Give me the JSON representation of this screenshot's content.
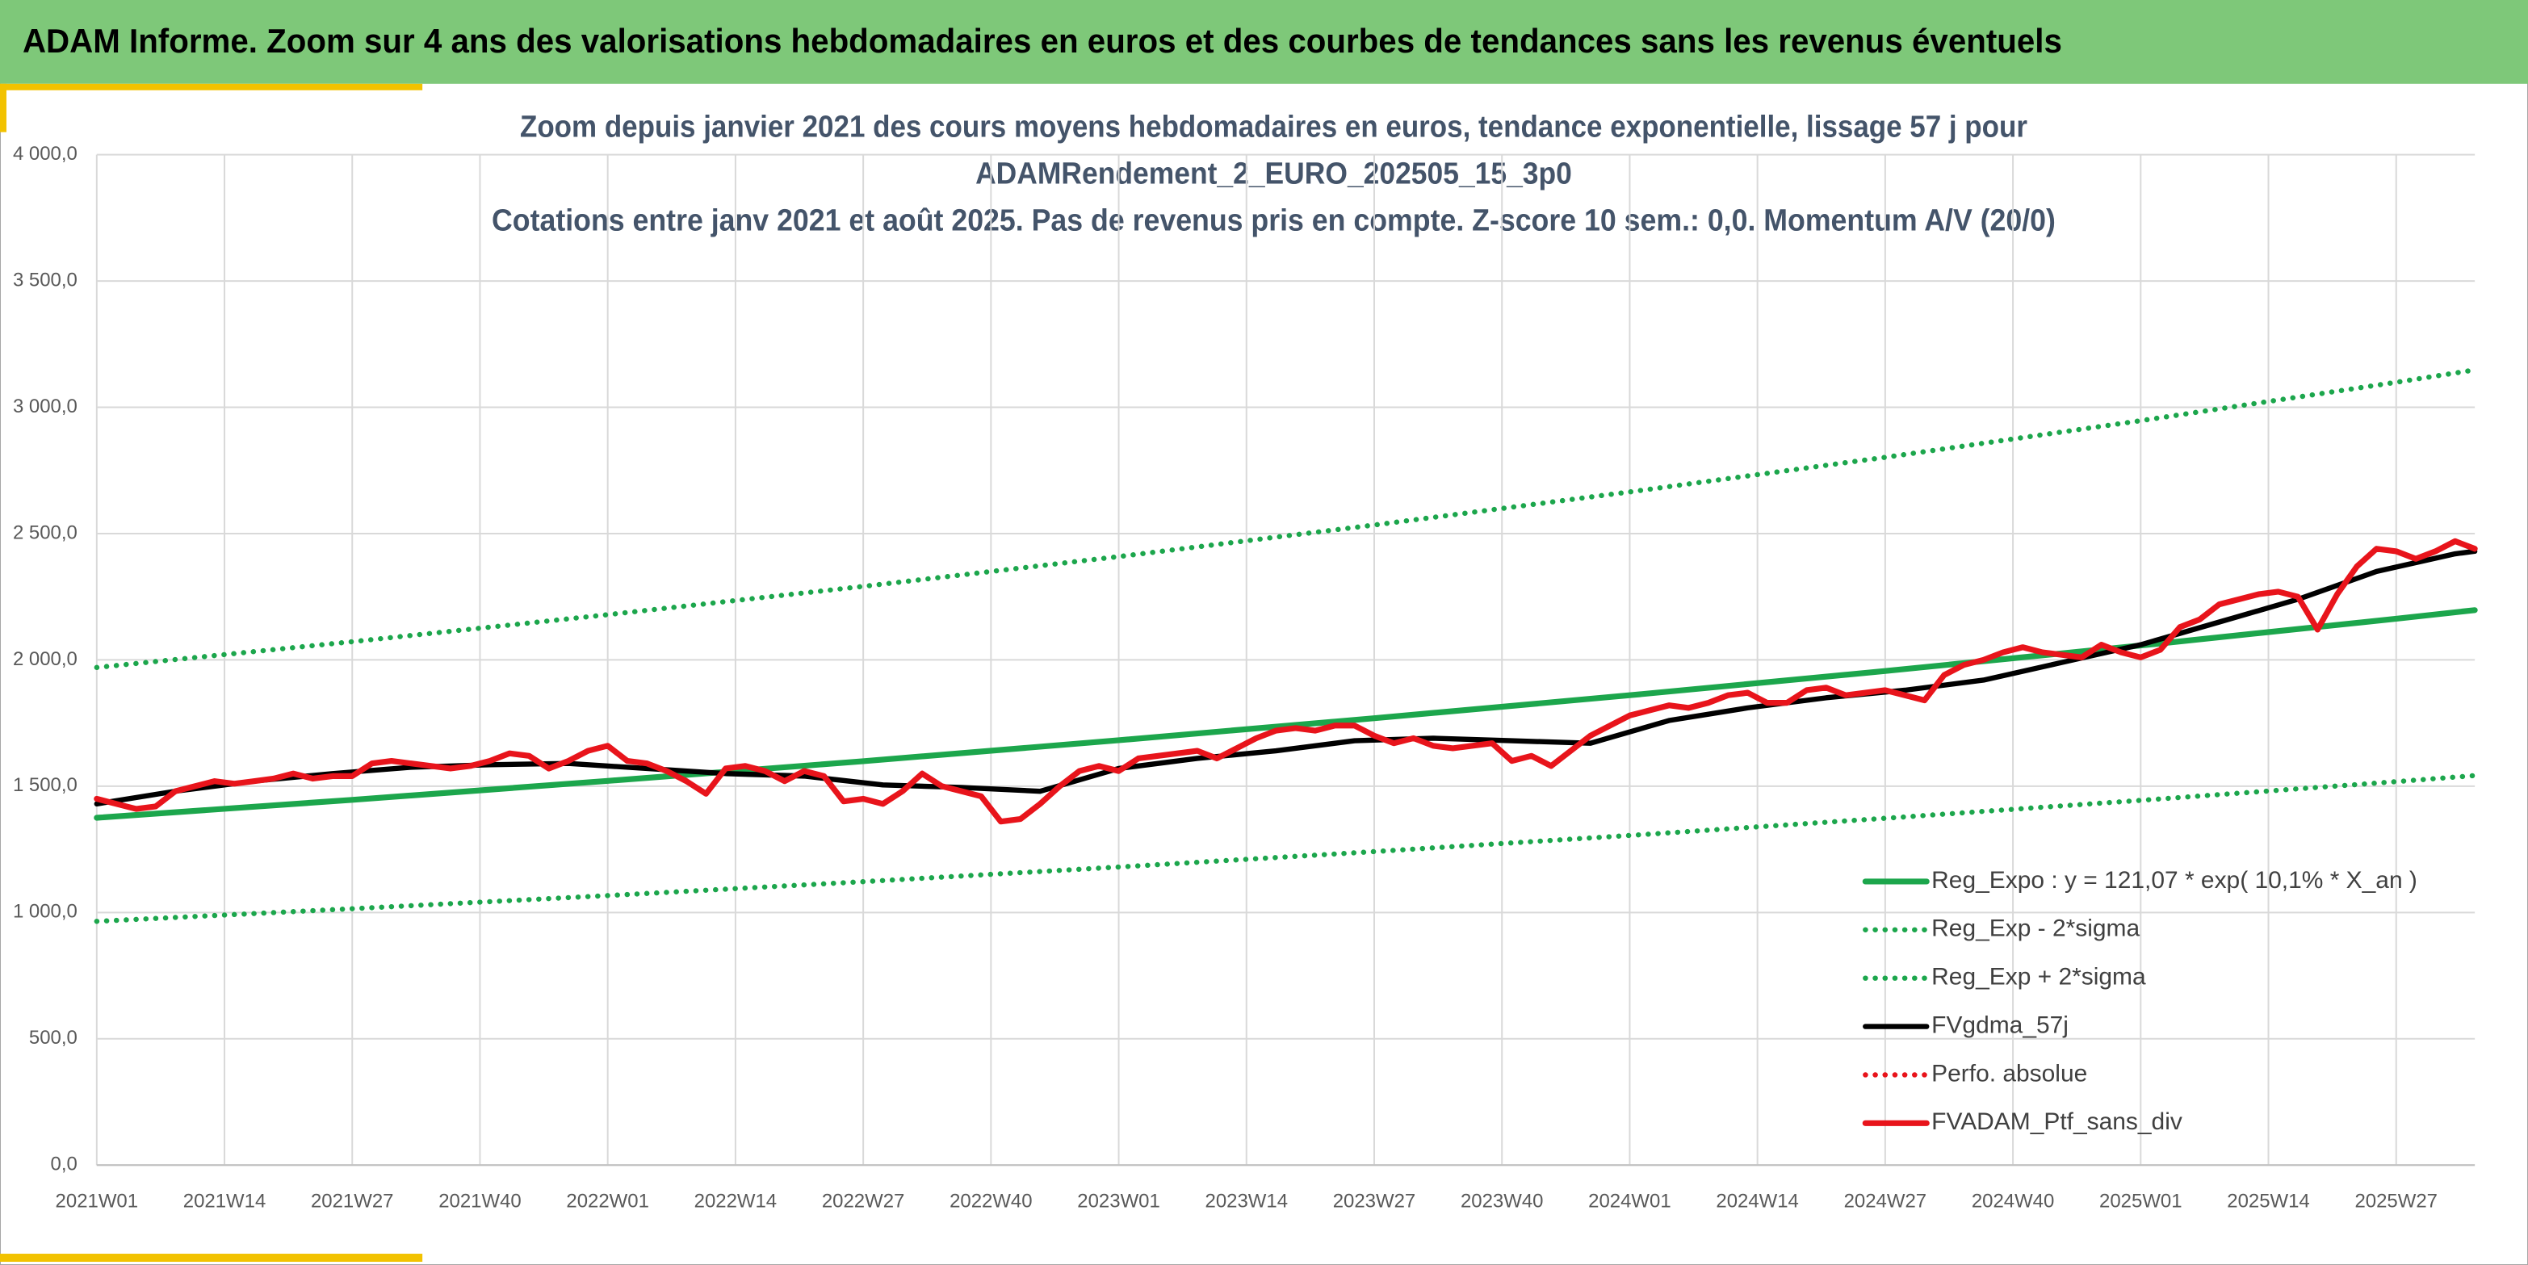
{
  "header": {
    "title": "ADAM Informe. Zoom sur 4 ans des valorisations hebdomadaires en euros et des courbes de tendances sans les revenus éventuels"
  },
  "chart_data": {
    "type": "line",
    "title_lines": [
      "Zoom depuis janvier 2021 des cours moyens hebdomadaires en euros, tendance exponentielle, lissage 57 j pour",
      "ADAMRendement_2_EURO_202505_15_3p0",
      "Cotations entre janv 2021 et août 2025. Pas de revenus pris en compte. Z-score 10 sem.: 0,0. Momentum A/V (20/0)"
    ],
    "xlim": [
      0,
      242
    ],
    "xticks": [
      {
        "value": 0,
        "label": "2021W01"
      },
      {
        "value": 13,
        "label": "2021W14"
      },
      {
        "value": 26,
        "label": "2021W27"
      },
      {
        "value": 39,
        "label": "2021W40"
      },
      {
        "value": 52,
        "label": "2022W01"
      },
      {
        "value": 65,
        "label": "2022W14"
      },
      {
        "value": 78,
        "label": "2022W27"
      },
      {
        "value": 91,
        "label": "2022W40"
      },
      {
        "value": 104,
        "label": "2023W01"
      },
      {
        "value": 117,
        "label": "2023W14"
      },
      {
        "value": 130,
        "label": "2023W27"
      },
      {
        "value": 143,
        "label": "2023W40"
      },
      {
        "value": 156,
        "label": "2024W01"
      },
      {
        "value": 169,
        "label": "2024W14"
      },
      {
        "value": 182,
        "label": "2024W27"
      },
      {
        "value": 195,
        "label": "2024W40"
      },
      {
        "value": 208,
        "label": "2025W01"
      },
      {
        "value": 221,
        "label": "2025W14"
      },
      {
        "value": 234,
        "label": "2025W27"
      }
    ],
    "ylim": [
      0,
      4000
    ],
    "yticks": [
      {
        "value": 0,
        "label": "0,0"
      },
      {
        "value": 500,
        "label": "500,0"
      },
      {
        "value": 1000,
        "label": "1 000,0"
      },
      {
        "value": 1500,
        "label": "1 500,0"
      },
      {
        "value": 2000,
        "label": "2 000,0"
      },
      {
        "value": 2500,
        "label": "2 500,0"
      },
      {
        "value": 3000,
        "label": "3 000,0"
      },
      {
        "value": 3500,
        "label": "3 500,0"
      },
      {
        "value": 4000,
        "label": "4 000,0"
      }
    ],
    "grid": true,
    "legend": "bottom-right",
    "series": [
      {
        "name": "Reg_Expo : y = 121,07 * exp( 10,1% *  X_an )",
        "color": "#1ca64c",
        "style": "solid",
        "x": [
          0,
          26,
          52,
          78,
          104,
          130,
          156,
          182,
          208,
          234,
          242
        ],
        "values": [
          1375,
          1446,
          1521,
          1599,
          1682,
          1769,
          1860,
          1956,
          2057,
          2163,
          2197
        ]
      },
      {
        "name": "Reg_Exp - 2*sigma",
        "color": "#1ca64c",
        "style": "dotted",
        "x": [
          0,
          26,
          52,
          78,
          104,
          130,
          156,
          182,
          208,
          234,
          242
        ],
        "values": [
          965,
          1015,
          1067,
          1122,
          1180,
          1241,
          1305,
          1373,
          1444,
          1518,
          1542
        ]
      },
      {
        "name": "Reg_Exp + 2*sigma",
        "color": "#1ca64c",
        "style": "dotted",
        "x": [
          0,
          26,
          52,
          78,
          104,
          130,
          156,
          182,
          208,
          234,
          242
        ],
        "values": [
          1970,
          2072,
          2179,
          2291,
          2409,
          2534,
          2665,
          2802,
          2947,
          3099,
          3148
        ]
      },
      {
        "name": "FVgdma_57j",
        "color": "#000000",
        "style": "solid",
        "x": [
          0,
          8,
          16,
          24,
          32,
          40,
          48,
          56,
          64,
          72,
          80,
          88,
          96,
          104,
          112,
          120,
          128,
          136,
          144,
          152,
          160,
          168,
          176,
          184,
          192,
          200,
          208,
          216,
          224,
          232,
          240,
          242
        ],
        "values": [
          1430,
          1480,
          1520,
          1550,
          1575,
          1585,
          1590,
          1570,
          1550,
          1540,
          1505,
          1495,
          1480,
          1570,
          1610,
          1640,
          1680,
          1690,
          1680,
          1670,
          1760,
          1810,
          1850,
          1880,
          1920,
          1990,
          2060,
          2150,
          2240,
          2350,
          2420,
          2430
        ]
      },
      {
        "name": "Perfo. absolue",
        "color": "#e8141b",
        "style": "dotted",
        "x": [],
        "values": []
      },
      {
        "name": "FVADAM_Ptf_sans_div",
        "color": "#e8141b",
        "style": "solid",
        "x": [
          0,
          2,
          4,
          6,
          8,
          10,
          12,
          14,
          16,
          18,
          20,
          22,
          24,
          26,
          28,
          30,
          32,
          34,
          36,
          38,
          40,
          42,
          44,
          46,
          48,
          50,
          52,
          54,
          56,
          58,
          60,
          62,
          64,
          66,
          68,
          70,
          72,
          74,
          76,
          78,
          80,
          82,
          84,
          86,
          88,
          90,
          92,
          94,
          96,
          98,
          100,
          102,
          104,
          106,
          108,
          110,
          112,
          114,
          116,
          118,
          120,
          122,
          124,
          126,
          128,
          130,
          132,
          134,
          136,
          138,
          140,
          142,
          144,
          146,
          148,
          150,
          152,
          154,
          156,
          158,
          160,
          162,
          164,
          166,
          168,
          170,
          172,
          174,
          176,
          178,
          180,
          182,
          184,
          186,
          188,
          190,
          192,
          194,
          196,
          198,
          200,
          202,
          204,
          206,
          208,
          210,
          212,
          214,
          216,
          218,
          220,
          222,
          224,
          226,
          228,
          230,
          232,
          234,
          236,
          238,
          240,
          242
        ],
        "values": [
          1450,
          1430,
          1410,
          1420,
          1480,
          1500,
          1520,
          1510,
          1520,
          1530,
          1550,
          1530,
          1540,
          1540,
          1590,
          1600,
          1590,
          1580,
          1570,
          1580,
          1600,
          1630,
          1620,
          1570,
          1600,
          1640,
          1660,
          1600,
          1590,
          1560,
          1520,
          1470,
          1570,
          1580,
          1560,
          1520,
          1560,
          1540,
          1440,
          1450,
          1430,
          1480,
          1550,
          1500,
          1480,
          1460,
          1360,
          1370,
          1430,
          1500,
          1560,
          1580,
          1560,
          1610,
          1620,
          1630,
          1640,
          1610,
          1650,
          1690,
          1720,
          1730,
          1720,
          1740,
          1740,
          1700,
          1670,
          1690,
          1660,
          1650,
          1660,
          1670,
          1600,
          1620,
          1580,
          1640,
          1700,
          1740,
          1780,
          1800,
          1820,
          1810,
          1830,
          1860,
          1870,
          1830,
          1830,
          1880,
          1890,
          1860,
          1870,
          1880,
          1860,
          1840,
          1940,
          1980,
          2000,
          2030,
          2050,
          2030,
          2020,
          2010,
          2060,
          2030,
          2010,
          2040,
          2130,
          2160,
          2220,
          2240,
          2260,
          2270,
          2250,
          2120,
          2260,
          2370,
          2440,
          2430,
          2400,
          2430,
          2470,
          2440
        ]
      }
    ]
  }
}
